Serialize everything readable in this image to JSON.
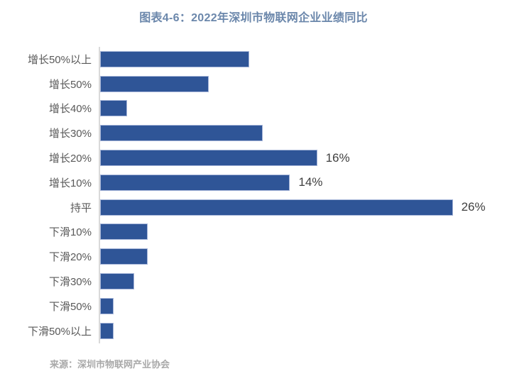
{
  "title": "图表4-6：2022年深圳市物联网企业业绩同比",
  "source": "来源：深圳市物联网产业协会",
  "colors": {
    "bar": "#2f5597",
    "bar_border": "#a7b6d9",
    "title": "#6b87ab",
    "axis_line": "#d9d9d9",
    "category_label": "#595959",
    "data_label": "#404040",
    "source_text": "#a9a9a9",
    "background": "#ffffff"
  },
  "chart_data": {
    "type": "bar",
    "orientation": "horizontal",
    "title": "图表4-6：2022年深圳市物联网企业业绩同比",
    "categories": [
      "增长50%以上",
      "增长50%",
      "增长40%",
      "增长30%",
      "增长20%",
      "增长10%",
      "持平",
      "下滑10%",
      "下滑20%",
      "下滑30%",
      "下滑50%",
      "下滑50%以上"
    ],
    "values": [
      11,
      8,
      2,
      12,
      16,
      14,
      26,
      3.5,
      3.5,
      2.5,
      1,
      1
    ],
    "data_labels": [
      "",
      "",
      "",
      "",
      "16%",
      "14%",
      "26%",
      "",
      "",
      "",
      "",
      ""
    ],
    "xlabel": "",
    "ylabel": "",
    "xlim": [
      0,
      30
    ],
    "grid": false,
    "legend": false,
    "source": "来源：深圳市物联网产业协会"
  }
}
